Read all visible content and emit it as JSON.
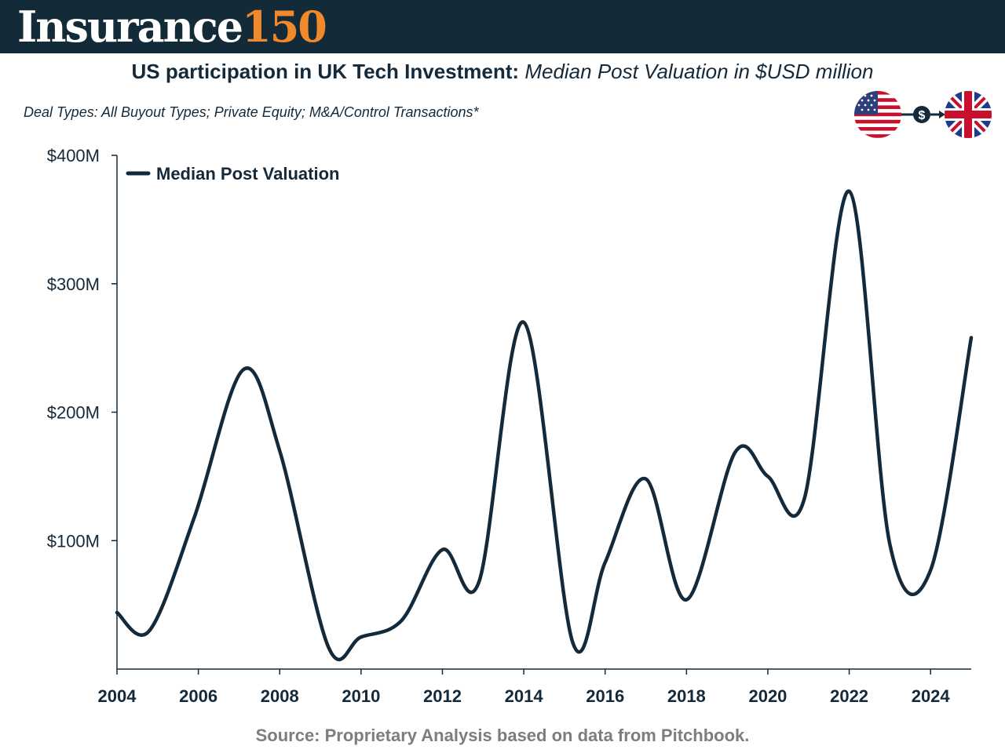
{
  "header": {
    "brand_word": "Insurance",
    "brand_number": "150",
    "brand_color": "#f0892b",
    "bar_color": "#132a38"
  },
  "title": {
    "bold": "US participation in UK Tech Investment:",
    "italic": "Median Post Valuation in $USD million"
  },
  "subtitle": "Deal Types: All Buyout Types; Private Equity; M&A/Control Transactions*",
  "flags": {
    "from": "us-flag-icon",
    "via": "dollar-icon",
    "to": "uk-flag-icon",
    "via_symbol": "$"
  },
  "chart_data": {
    "type": "line",
    "title": "",
    "xlabel": "",
    "ylabel": "",
    "xlim": [
      2004,
      2025
    ],
    "ylim": [
      0,
      400
    ],
    "yticks": [
      100,
      200,
      300,
      400
    ],
    "ytick_labels": [
      "$100M",
      "$200M",
      "$300M",
      "$400M"
    ],
    "xticks": [
      2004,
      2006,
      2008,
      2010,
      2012,
      2014,
      2016,
      2018,
      2020,
      2022,
      2024
    ],
    "xtick_labels": [
      "2004",
      "2006",
      "2008",
      "2010",
      "2012",
      "2014",
      "2016",
      "2018",
      "2020",
      "2022",
      "2024"
    ],
    "legend_position": "top-left",
    "grid": false,
    "line_color": "#14293a",
    "series": [
      {
        "name": "Median Post Valuation",
        "x": [
          2004.0,
          2004.8,
          2005.9,
          2007.1,
          2008.0,
          2009.2,
          2010.0,
          2011.0,
          2012.0,
          2012.9,
          2014.0,
          2015.2,
          2016.0,
          2017.0,
          2018.0,
          2019.2,
          2020.0,
          2020.9,
          2022.0,
          2023.0,
          2024.0,
          2025.0
        ],
        "y": [
          44,
          30,
          118,
          233,
          170,
          17,
          25,
          38,
          93,
          68,
          270,
          21,
          83,
          148,
          54,
          169,
          150,
          133,
          372,
          97,
          77,
          258
        ]
      }
    ]
  },
  "source": "Source: Proprietary Analysis based on data from Pitchbook."
}
